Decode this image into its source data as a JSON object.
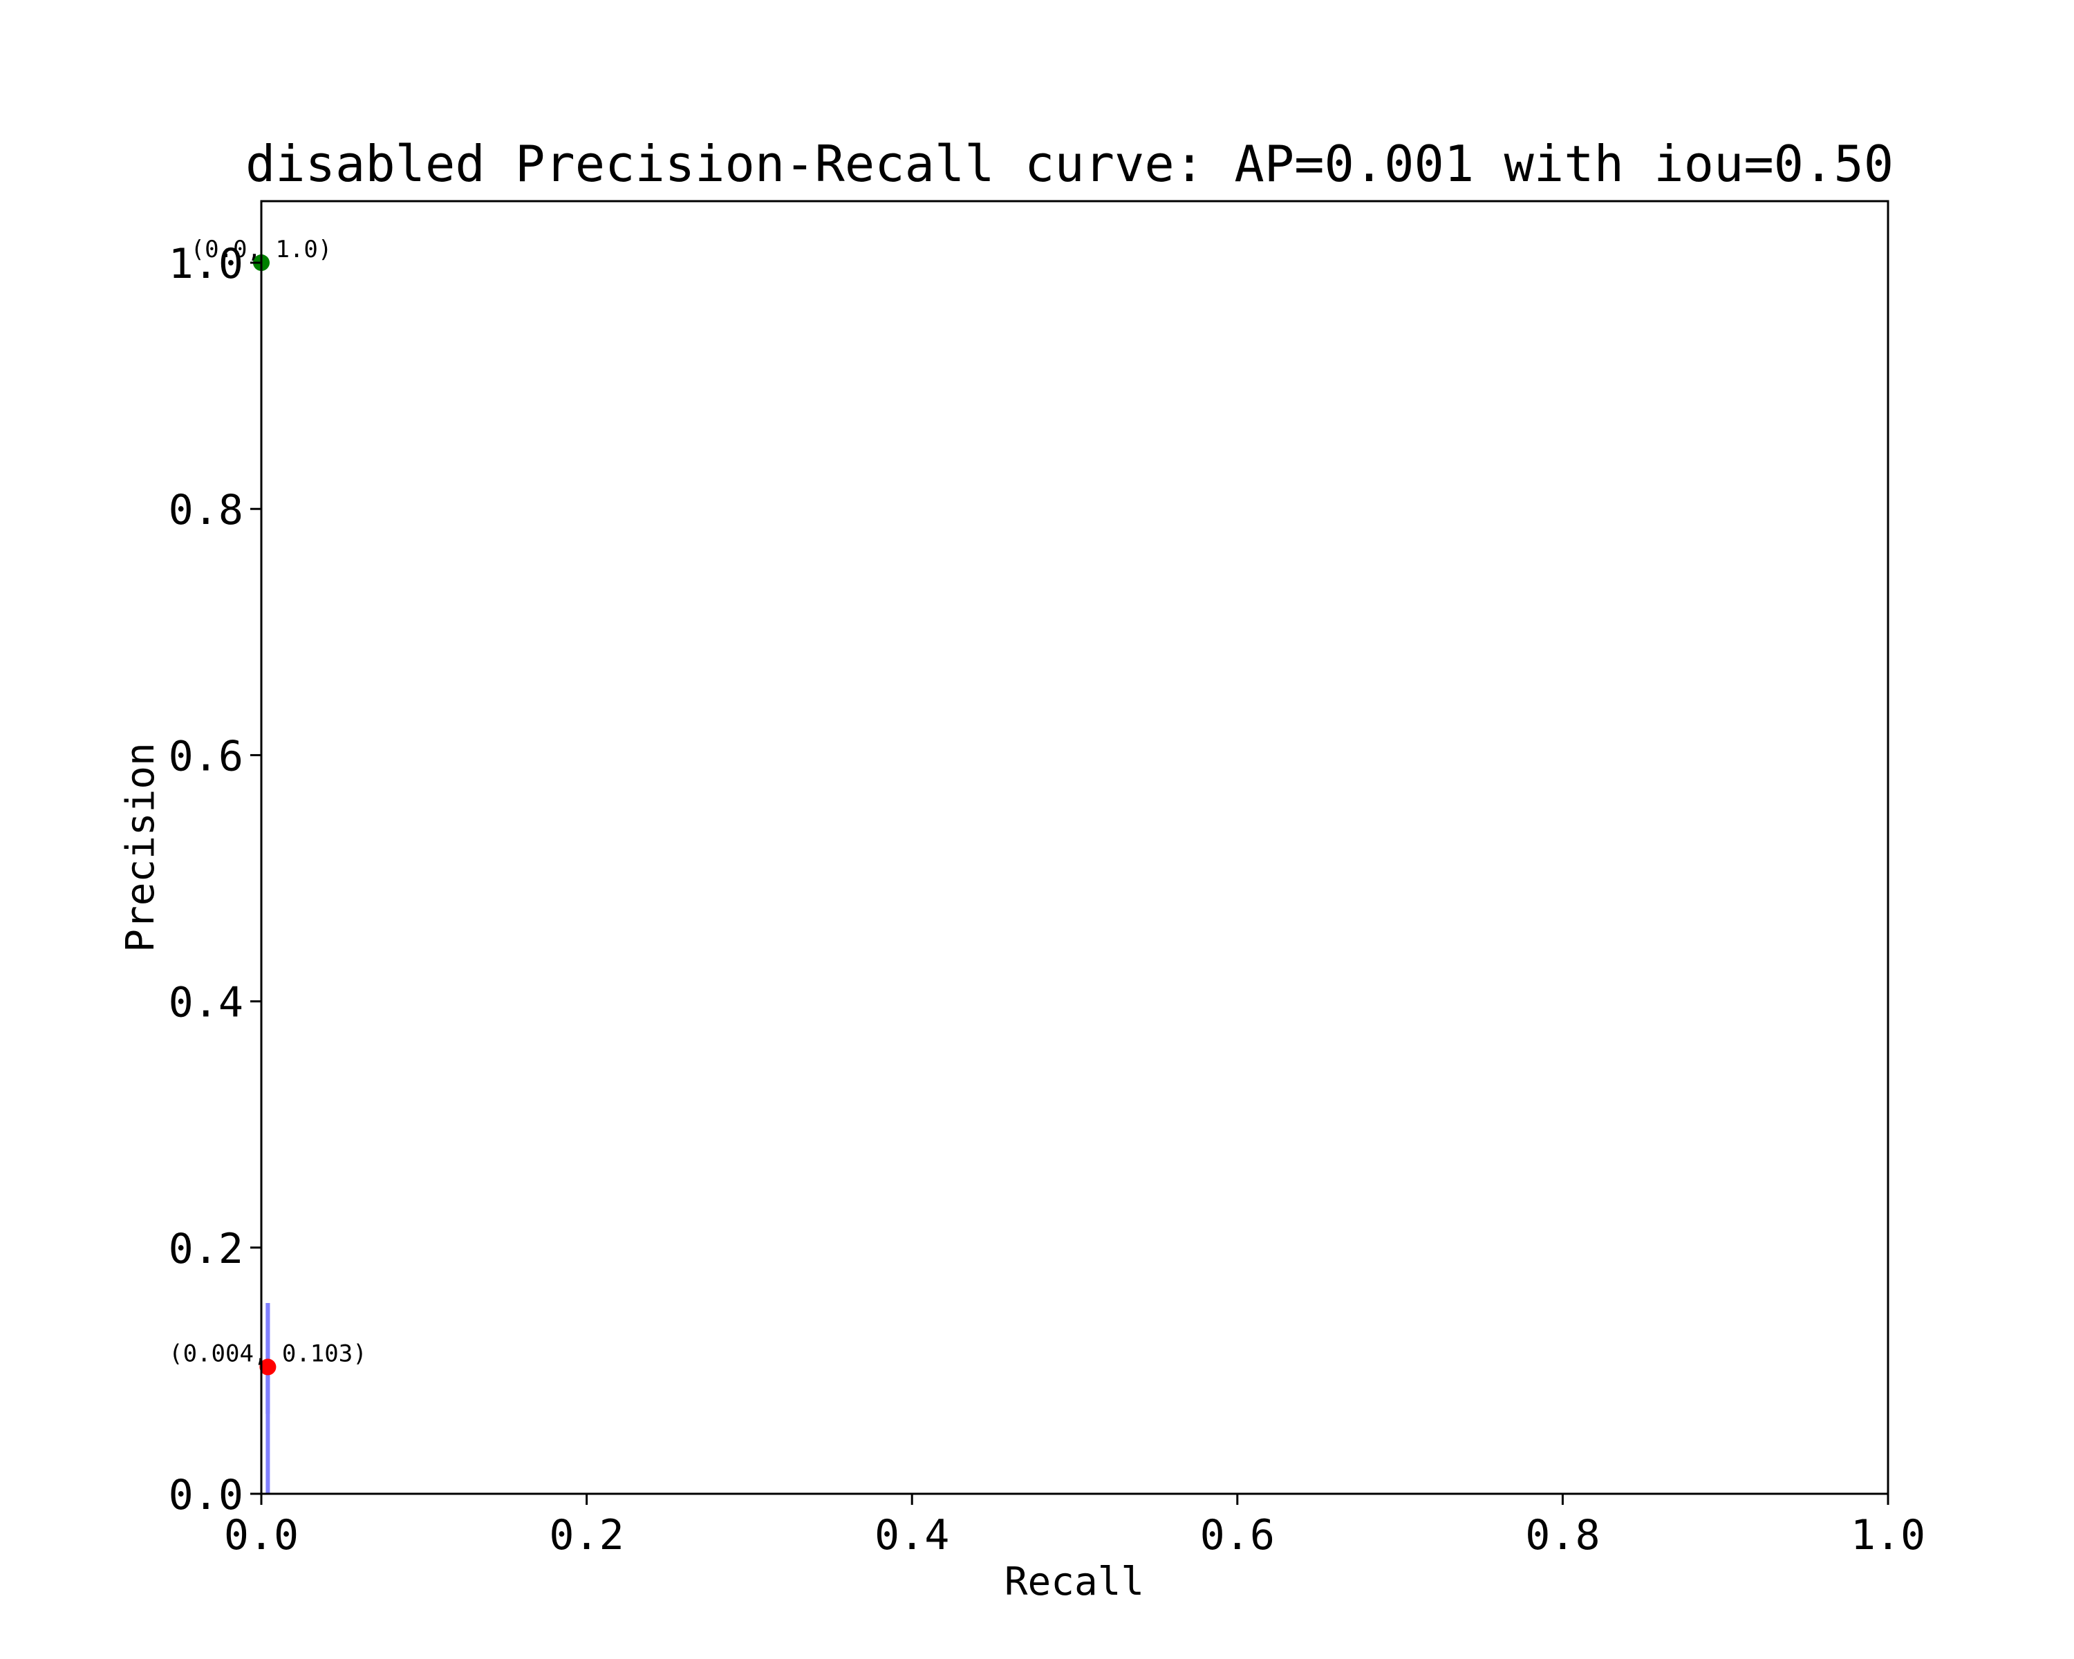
{
  "chart_data": {
    "type": "line",
    "title": "disabled Precision-Recall curve: AP=0.001 with iou=0.50",
    "xlabel": "Recall",
    "ylabel": "Precision",
    "xlim": [
      0,
      1
    ],
    "ylim": [
      0,
      1.05
    ],
    "xticks": [
      "0.0",
      "0.2",
      "0.4",
      "0.6",
      "0.8",
      "1.0"
    ],
    "yticks": [
      "0.0",
      "0.2",
      "0.4",
      "0.6",
      "0.8",
      "1.0"
    ],
    "grid": false,
    "series": [
      {
        "color": "#8080ff",
        "x": [
          0.004,
          0.004,
          0.004,
          0.004,
          0.004
        ],
        "y": [
          0.0,
          0.155,
          0.12,
          0.065,
          0.103
        ]
      }
    ],
    "markers": [
      {
        "x": 0.0,
        "y": 1.0,
        "color": "#008000",
        "label": "(0.0, 1.0)"
      },
      {
        "x": 0.004,
        "y": 0.103,
        "color": "#ff0000",
        "label": "(0.004, 0.103)"
      }
    ],
    "axis_color": "#000000"
  }
}
